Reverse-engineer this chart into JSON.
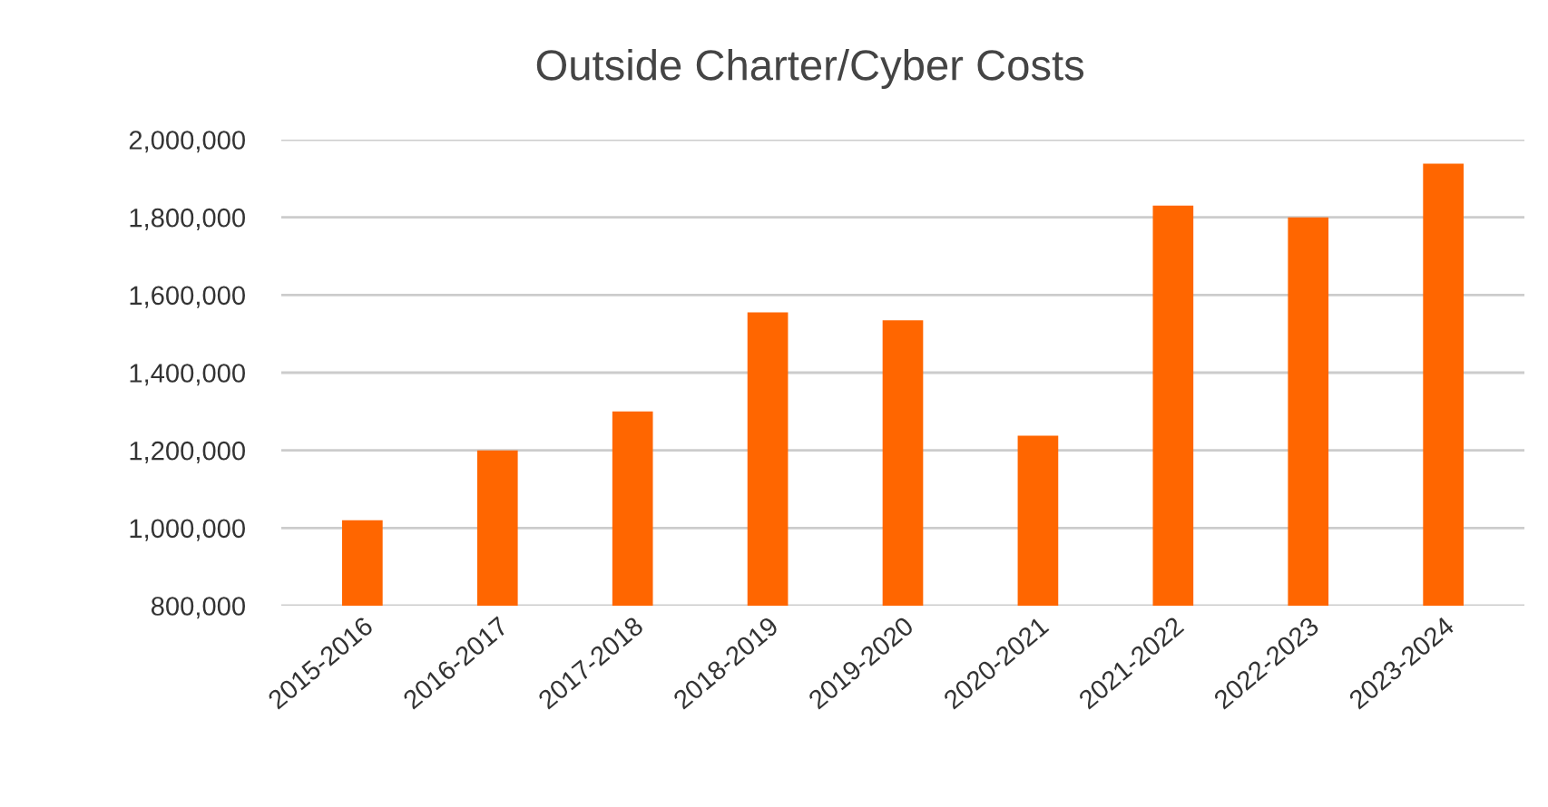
{
  "chart_data": {
    "type": "bar",
    "title": "Outside Charter/Cyber Costs",
    "categories": [
      "2015-2016",
      "2016-2017",
      "2017-2018",
      "2018-2019",
      "2019-2020",
      "2020-2021",
      "2021-2022",
      "2022-2023",
      "2023-2024"
    ],
    "values": [
      1020000,
      1200000,
      1300000,
      1555000,
      1535000,
      1238000,
      1830000,
      1800000,
      1938000
    ],
    "color": "#ff6600",
    "ylim": [
      800000,
      2000000
    ],
    "yticks": [
      {
        "value": 800000,
        "label": "800,000"
      },
      {
        "value": 1000000,
        "label": "1,000,000"
      },
      {
        "value": 1200000,
        "label": "1,200,000"
      },
      {
        "value": 1400000,
        "label": "1,400,000"
      },
      {
        "value": 1600000,
        "label": "1,600,000"
      },
      {
        "value": 1800000,
        "label": "1,800,000"
      },
      {
        "value": 2000000,
        "label": "2,000,000"
      }
    ],
    "grid": "y"
  }
}
